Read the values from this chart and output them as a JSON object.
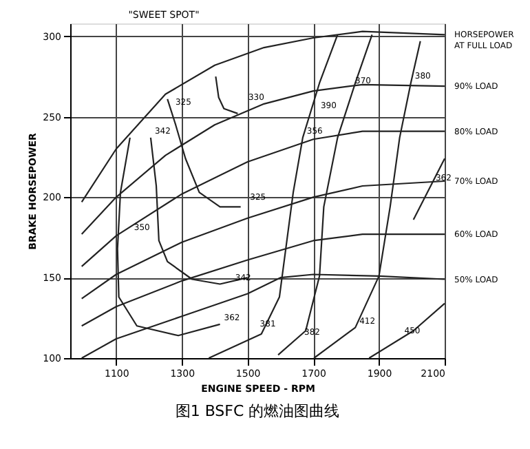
{
  "chart_data": {
    "type": "line",
    "title": "图1 BSFC 的燃油图曲线",
    "xlabel": "ENGINE SPEED - RPM",
    "ylabel": "BRAKE HORSEPOWER",
    "xlim": [
      960,
      2100
    ],
    "xticks": [
      1100,
      1300,
      1500,
      1700,
      1900,
      2100
    ],
    "ylim": [
      100,
      308
    ],
    "yticks": [
      100,
      150,
      200,
      250,
      300
    ],
    "grid": true,
    "legend": false,
    "marker": "none",
    "line_style": "solid",
    "series": [
      {
        "name": "HORSEPOWER AT FULL LOAD",
        "color": "#222222",
        "x": [
          995,
          1100,
          1250,
          1400,
          1550,
          1700,
          1850,
          2100
        ],
        "values": [
          197,
          230,
          264,
          282,
          293,
          299,
          303,
          301
        ]
      },
      {
        "name": "90% LOAD",
        "color": "#222222",
        "x": [
          995,
          1100,
          1250,
          1400,
          1550,
          1700,
          1850,
          2100
        ],
        "values": [
          177,
          200,
          226,
          245,
          258,
          266,
          270,
          269
        ]
      },
      {
        "name": "80% LOAD",
        "color": "#222222",
        "x": [
          995,
          1100,
          1300,
          1500,
          1700,
          1850,
          2100
        ],
        "values": [
          157,
          176,
          202,
          222,
          236,
          241,
          241
        ]
      },
      {
        "name": "70% LOAD",
        "color": "#222222",
        "x": [
          995,
          1100,
          1300,
          1500,
          1700,
          1850,
          2100
        ],
        "values": [
          137,
          152,
          172,
          187,
          200,
          207,
          210
        ]
      },
      {
        "name": "60% LOAD",
        "color": "#222222",
        "x": [
          995,
          1100,
          1300,
          1500,
          1700,
          1850,
          2100
        ],
        "values": [
          120,
          132,
          148,
          161,
          173,
          177,
          177
        ]
      },
      {
        "name": "50% LOAD",
        "color": "#222222",
        "x": [
          995,
          1100,
          1300,
          1500,
          1600,
          1700,
          1900,
          2100
        ],
        "values": [
          100,
          112,
          126,
          140,
          150,
          152,
          151,
          149
        ]
      },
      {
        "color": "#222222",
        "x": [
          1403,
          1412,
          1428,
          1470
        ],
        "values": [
          275,
          262,
          255,
          252
        ]
      },
      {
        "color": "#222222",
        "x": [
          1256,
          1281,
          1311,
          1353,
          1416,
          1479
        ],
        "values": [
          261,
          245,
          224,
          203,
          194,
          194
        ]
      },
      {
        "color": "#222222",
        "x": [
          1205,
          1222,
          1230,
          1256,
          1331,
          1416,
          1500
        ],
        "values": [
          237,
          207,
          173,
          160,
          149,
          146,
          150
        ]
      },
      {
        "color": "#222222",
        "x": [
          1142,
          1113,
          1104,
          1108,
          1163,
          1289,
          1416
        ],
        "values": [
          237,
          203,
          168,
          138,
          120,
          114,
          121
        ]
      },
      {
        "color": "#222222",
        "x": [
          1382,
          1542,
          1597,
          1639,
          1668,
          1719,
          1774
        ],
        "values": [
          100,
          115,
          138,
          203,
          237,
          271,
          301
        ]
      },
      {
        "color": "#222222",
        "x": [
          1593,
          1677,
          1719,
          1732,
          1774,
          1828,
          1879
        ],
        "values": [
          102,
          117,
          151,
          194,
          237,
          271,
          301
        ]
      },
      {
        "color": "#222222",
        "x": [
          1702,
          1828,
          1900,
          1934,
          1963,
          1997,
          2026
        ],
        "values": [
          100,
          119,
          151,
          194,
          237,
          271,
          297
        ]
      },
      {
        "color": "#222222",
        "x": [
          1870,
          2005,
          2100
        ],
        "values": [
          100,
          117,
          134
        ]
      },
      {
        "color": "#222222",
        "x": [
          2005,
          2100
        ],
        "values": [
          186,
          224
        ]
      }
    ],
    "annotations": [
      "\"SWEET SPOT\"",
      {
        "text": "330",
        "x": 1490,
        "y": 258
      },
      {
        "text": "325",
        "x": 1268,
        "y": 255
      },
      {
        "text": "342",
        "x": 1205,
        "y": 237
      },
      {
        "text": "325",
        "x": 1495,
        "y": 196
      },
      {
        "text": "350",
        "x": 1142,
        "y": 177
      },
      {
        "text": "342",
        "x": 1450,
        "y": 146
      },
      {
        "text": "362",
        "x": 1416,
        "y": 121
      },
      {
        "text": "381",
        "x": 1525,
        "y": 117
      },
      {
        "text": "382",
        "x": 1660,
        "y": 112
      },
      {
        "text": "412",
        "x": 1828,
        "y": 119
      },
      {
        "text": "450",
        "x": 1965,
        "y": 113
      },
      {
        "text": "356",
        "x": 1668,
        "y": 237
      },
      {
        "text": "390",
        "x": 1710,
        "y": 253
      },
      {
        "text": "370",
        "x": 1815,
        "y": 268
      },
      {
        "text": "380",
        "x": 1997,
        "y": 271
      },
      {
        "text": "362",
        "x": 2060,
        "y": 208
      }
    ]
  }
}
